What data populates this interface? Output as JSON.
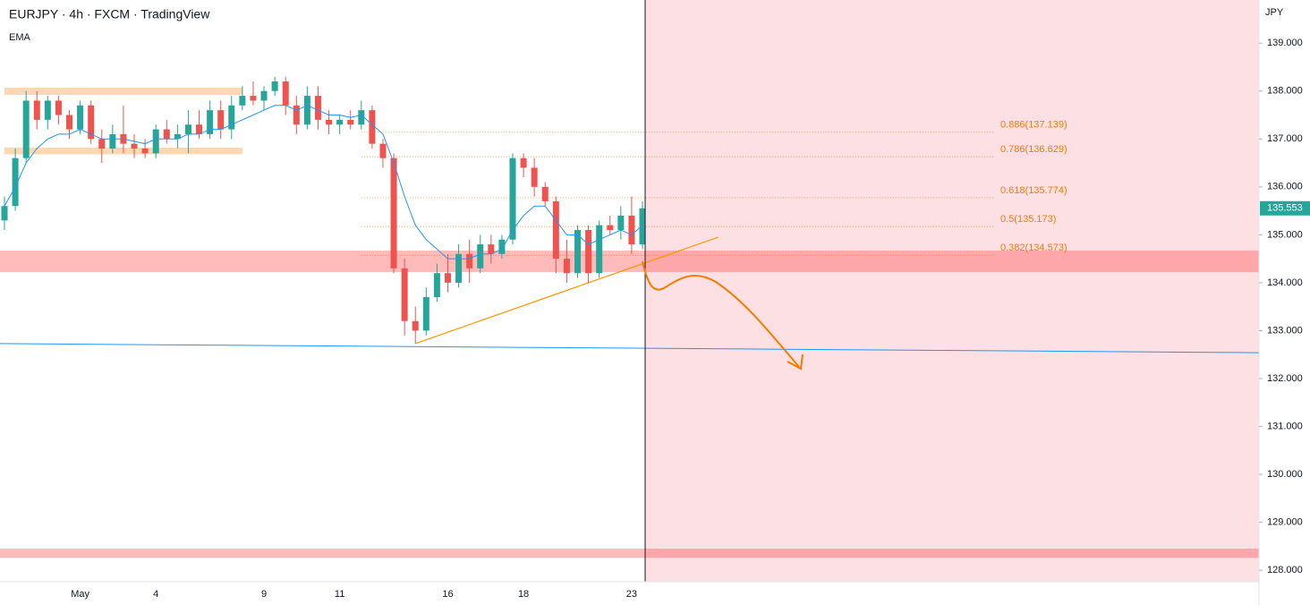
{
  "chart_data": {
    "type": "candlestick",
    "title": "EURJPY · 4h · FXCM · TradingView",
    "indicator": "EMA",
    "currency": "JPY",
    "categories": [
      null,
      null,
      null,
      null,
      null,
      null,
      null,
      "May",
      null,
      null,
      null,
      null,
      null,
      null,
      "4",
      null,
      null,
      null,
      null,
      null,
      null,
      null,
      null,
      null,
      "9",
      null,
      null,
      null,
      null,
      null,
      null,
      "11",
      null,
      null,
      null,
      null,
      null,
      null,
      null,
      null,
      null,
      "16",
      null,
      null,
      null,
      null,
      null,
      null,
      "18",
      null,
      null,
      null,
      null,
      null,
      null,
      null,
      null,
      null,
      "23",
      null
    ],
    "open": [
      135.3,
      135.6,
      136.6,
      137.8,
      137.4,
      137.8,
      137.5,
      137.2,
      137.7,
      137.0,
      136.8,
      137.1,
      136.9,
      136.8,
      136.7,
      137.2,
      137.0,
      137.1,
      137.3,
      137.1,
      137.6,
      137.2,
      137.7,
      137.9,
      137.8,
      138.0,
      138.2,
      137.7,
      137.3,
      137.9,
      137.4,
      137.3,
      137.4,
      137.3,
      137.6,
      136.9,
      136.6,
      134.3,
      133.2,
      133.0,
      133.7,
      134.2,
      134.0,
      134.6,
      134.3,
      134.8,
      134.6,
      134.9,
      136.6,
      136.4,
      136.0,
      135.7,
      134.5,
      134.2,
      135.1,
      134.2,
      135.2,
      135.1,
      135.4,
      134.8
    ],
    "high": [
      135.8,
      136.8,
      138.0,
      138.0,
      137.9,
      137.9,
      137.6,
      137.8,
      137.8,
      137.2,
      137.3,
      137.7,
      137.1,
      137.0,
      137.3,
      137.4,
      137.3,
      137.6,
      137.6,
      137.8,
      137.8,
      137.9,
      138.1,
      138.2,
      138.1,
      138.3,
      138.3,
      137.9,
      138.1,
      138.1,
      137.6,
      137.5,
      137.6,
      137.8,
      137.7,
      137.0,
      136.7,
      134.5,
      133.5,
      133.9,
      134.4,
      134.6,
      134.8,
      134.9,
      135.0,
      135.0,
      135.0,
      136.7,
      136.7,
      136.6,
      136.1,
      135.8,
      134.9,
      135.2,
      135.2,
      135.3,
      135.4,
      135.6,
      135.8,
      135.7
    ],
    "low": [
      135.1,
      135.5,
      136.5,
      137.2,
      137.2,
      137.3,
      137.0,
      137.1,
      136.9,
      136.5,
      136.7,
      136.7,
      136.6,
      136.6,
      136.6,
      136.9,
      136.8,
      136.7,
      137.0,
      137.0,
      137.0,
      137.0,
      137.6,
      137.7,
      137.6,
      137.9,
      137.5,
      137.1,
      137.2,
      137.2,
      137.1,
      137.1,
      137.2,
      137.2,
      136.8,
      136.4,
      134.2,
      132.9,
      132.73,
      132.9,
      133.6,
      133.8,
      133.9,
      134.0,
      134.2,
      134.4,
      134.5,
      134.8,
      136.2,
      135.8,
      135.6,
      134.2,
      134.0,
      134.1,
      134.0,
      134.1,
      135.0,
      134.9,
      134.6,
      134.7
    ],
    "close": [
      135.6,
      136.6,
      137.8,
      137.4,
      137.8,
      137.5,
      137.2,
      137.7,
      137.0,
      136.8,
      137.1,
      136.9,
      136.8,
      136.7,
      137.2,
      137.0,
      137.1,
      137.3,
      137.1,
      137.6,
      137.2,
      137.7,
      137.9,
      137.8,
      138.0,
      138.2,
      137.7,
      137.3,
      137.9,
      137.4,
      137.3,
      137.4,
      137.3,
      137.6,
      136.9,
      136.6,
      134.3,
      133.2,
      133.0,
      133.7,
      134.2,
      134.0,
      134.6,
      134.3,
      134.8,
      134.6,
      134.9,
      136.6,
      136.4,
      136.0,
      135.7,
      134.5,
      134.2,
      135.1,
      134.2,
      135.2,
      135.1,
      135.4,
      134.8,
      135.553
    ],
    "up_color": "#26a69a",
    "down_color": "#ef5350",
    "ema": {
      "color": "#2196f3",
      "values": [
        135.6,
        136.0,
        136.5,
        136.8,
        137.0,
        137.1,
        137.1,
        137.2,
        137.1,
        137.0,
        137.0,
        137.0,
        136.95,
        136.9,
        137.0,
        137.0,
        137.0,
        137.1,
        137.1,
        137.2,
        137.2,
        137.3,
        137.4,
        137.5,
        137.6,
        137.7,
        137.7,
        137.6,
        137.7,
        137.6,
        137.5,
        137.5,
        137.45,
        137.5,
        137.3,
        137.1,
        136.5,
        135.8,
        135.2,
        134.9,
        134.7,
        134.5,
        134.5,
        134.5,
        134.6,
        134.6,
        134.7,
        135.1,
        135.4,
        135.6,
        135.6,
        135.3,
        135.0,
        135.0,
        134.8,
        134.9,
        135.0,
        135.1,
        135.0,
        135.2
      ]
    },
    "last_price": 135.553,
    "ylim": [
      127.76,
      139.9
    ],
    "yticks": [
      {
        "value": 128,
        "label": "128.000"
      },
      {
        "value": 129,
        "label": "129.000"
      },
      {
        "value": 130,
        "label": "130.000"
      },
      {
        "value": 131,
        "label": "131.000"
      },
      {
        "value": 132,
        "label": "132.000"
      },
      {
        "value": 133,
        "label": "133.000"
      },
      {
        "value": 134,
        "label": "134.000"
      },
      {
        "value": 135,
        "label": "135.000"
      },
      {
        "value": 136,
        "label": "136.000"
      },
      {
        "value": 137,
        "label": "137.000"
      },
      {
        "value": 138,
        "label": "138.000"
      },
      {
        "value": 139,
        "label": "139.000"
      }
    ],
    "zones": [
      {
        "from": 137.92,
        "to": 138.07,
        "start": 0,
        "end": 22,
        "color": "rgba(255,167,80,0.45)"
      },
      {
        "from": 136.68,
        "to": 136.82,
        "start": 0,
        "end": 22,
        "color": "rgba(255,167,80,0.45)"
      },
      {
        "from": 134.22,
        "to": 134.67,
        "color": "rgba(255,82,82,0.4)"
      },
      {
        "from": 128.26,
        "to": 128.45,
        "color": "rgba(255,82,82,0.4)"
      }
    ],
    "fibonacci": {
      "color": "#f57c00",
      "start": 33,
      "levels": [
        {
          "label": "0.886(137.139)",
          "value": 137.139
        },
        {
          "label": "0.786(136.629)",
          "value": 136.629
        },
        {
          "label": "0.618(135.774)",
          "value": 135.774
        },
        {
          "label": "0.5(135.173)",
          "value": 135.173
        },
        {
          "label": "0.382(134.573)",
          "value": 134.573
        }
      ]
    },
    "trendline": {
      "color": "#ff9800",
      "x": [
        38,
        66
      ],
      "y": [
        132.73,
        134.95
      ]
    },
    "support_line": {
      "color": "#2196f3",
      "y": [
        132.73,
        132.54
      ]
    }
  }
}
